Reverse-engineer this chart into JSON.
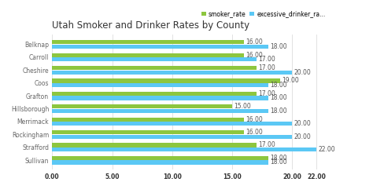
{
  "title": "Utah Smoker and Drinker Rates by County",
  "counties": [
    "Belknap",
    "Carroll",
    "Cheshire",
    "Coos",
    "Grafton",
    "Hillsborough",
    "Merrimack",
    "Rockingham",
    "Strafford",
    "Sullivan"
  ],
  "smoker_rate": [
    16,
    16,
    17,
    19,
    17,
    15,
    16,
    16,
    17,
    18
  ],
  "drinker_rate": [
    18,
    17,
    20,
    18,
    18,
    18,
    20,
    20,
    22,
    18
  ],
  "smoker_color": "#8DC63F",
  "drinker_color": "#5BC8F5",
  "background_color": "#ffffff",
  "plot_bg_color": "#ffffff",
  "title_fontsize": 8.5,
  "label_fontsize": 5.5,
  "tick_fontsize": 5.5,
  "legend_fontsize": 5.5,
  "bar_height": 0.32,
  "bar_gap": 0.02,
  "xlim": [
    0,
    23
  ],
  "xticks": [
    0,
    5,
    10,
    15,
    20,
    22
  ],
  "xtick_labels": [
    "0.00",
    "5.00",
    "10.00",
    "15.00",
    "20.00",
    "22.00"
  ],
  "legend_label_1": "smoker_rate",
  "legend_label_2": "excessive_drinker_ra..."
}
